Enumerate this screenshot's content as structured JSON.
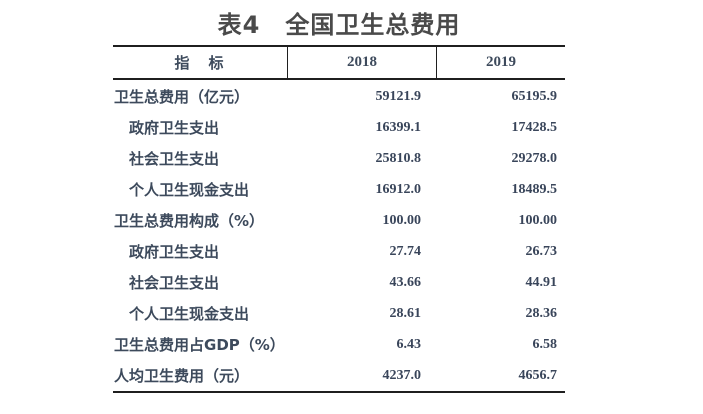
{
  "title": "表4　全国卫生总费用",
  "table": {
    "columns": [
      "指　标",
      "2018",
      "2019"
    ],
    "rows": [
      {
        "label": "卫生总费用（亿元）",
        "indent": false,
        "v2018": "59121.9",
        "v2019": "65195.9"
      },
      {
        "label": "政府卫生支出",
        "indent": true,
        "v2018": "16399.1",
        "v2019": "17428.5"
      },
      {
        "label": "社会卫生支出",
        "indent": true,
        "v2018": "25810.8",
        "v2019": "29278.0"
      },
      {
        "label": "个人卫生现金支出",
        "indent": true,
        "v2018": "16912.0",
        "v2019": "18489.5"
      },
      {
        "label": "卫生总费用构成（%）",
        "indent": false,
        "v2018": "100.00",
        "v2019": "100.00"
      },
      {
        "label": "政府卫生支出",
        "indent": true,
        "v2018": "27.74",
        "v2019": "26.73"
      },
      {
        "label": "社会卫生支出",
        "indent": true,
        "v2018": "43.66",
        "v2019": "44.91"
      },
      {
        "label": "个人卫生现金支出",
        "indent": true,
        "v2018": "28.61",
        "v2019": "28.36"
      },
      {
        "label": "卫生总费用占GDP（%）",
        "indent": false,
        "v2018": "6.43",
        "v2019": "6.58"
      },
      {
        "label": "人均卫生费用（元）",
        "indent": false,
        "v2018": "4237.0",
        "v2019": "4656.7"
      }
    ]
  },
  "chart_data": {
    "type": "table",
    "title": "表4 全国卫生总费用",
    "columns": [
      "指标",
      "2018",
      "2019"
    ],
    "rows": [
      [
        "卫生总费用（亿元）",
        59121.9,
        65195.9
      ],
      [
        "政府卫生支出",
        16399.1,
        17428.5
      ],
      [
        "社会卫生支出",
        25810.8,
        29278.0
      ],
      [
        "个人卫生现金支出",
        16912.0,
        18489.5
      ],
      [
        "卫生总费用构成（%）",
        100.0,
        100.0
      ],
      [
        "政府卫生支出",
        27.74,
        26.73
      ],
      [
        "社会卫生支出",
        43.66,
        44.91
      ],
      [
        "个人卫生现金支出",
        28.61,
        28.36
      ],
      [
        "卫生总费用占GDP（%）",
        6.43,
        6.58
      ],
      [
        "人均卫生费用（元）",
        4237.0,
        4656.7
      ]
    ]
  },
  "colors": {
    "background": "#ffffff",
    "title": "#4a4a4a",
    "text": "#3d4a5c",
    "numeral": "#39455a",
    "border": "#1f1f1f"
  }
}
